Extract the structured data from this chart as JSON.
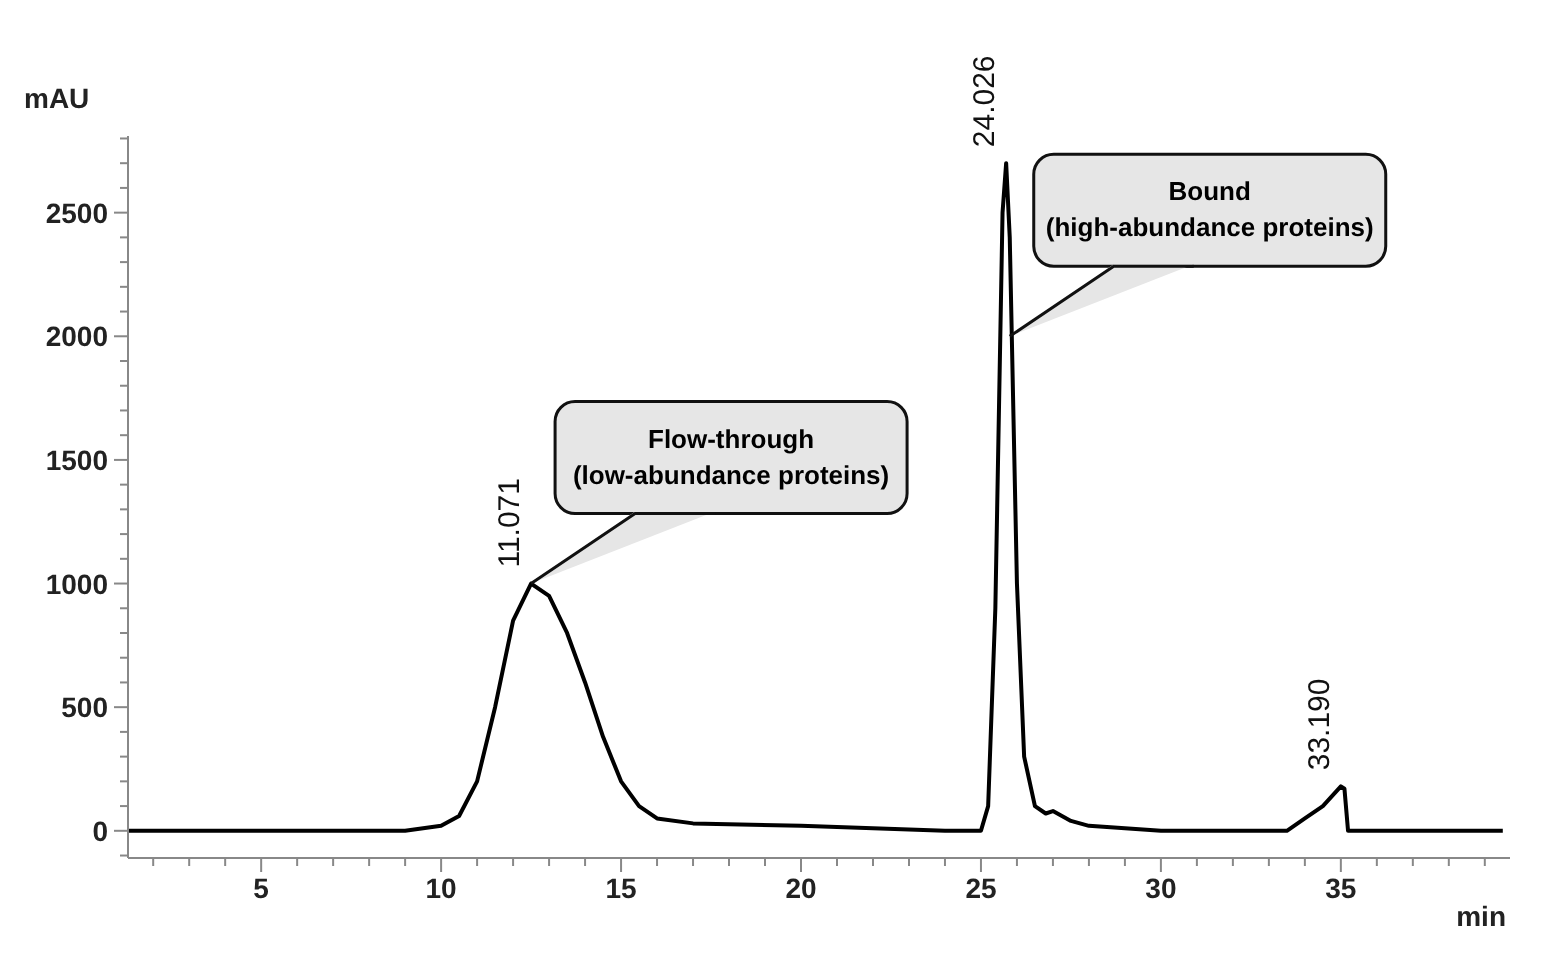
{
  "chart_data": {
    "type": "line",
    "xlabel": "min",
    "ylabel": "mAU",
    "x": [
      1.3,
      8,
      9,
      10,
      10.5,
      11,
      11.5,
      12,
      12.5,
      13,
      13.5,
      14,
      14.5,
      15,
      15.5,
      16,
      17,
      20,
      24,
      25,
      25.2,
      25.4,
      25.6,
      25.7,
      25.8,
      26,
      26.2,
      26.5,
      26.8,
      27,
      27.5,
      28,
      30,
      33,
      33.5,
      34,
      34.5,
      35,
      35.1,
      35.2,
      35.4,
      39.5
    ],
    "series": [
      {
        "color": "#000000",
        "values": [
          0,
          0,
          0,
          20,
          60,
          200,
          500,
          850,
          1000,
          950,
          800,
          600,
          380,
          200,
          100,
          50,
          30,
          20,
          0,
          0,
          100,
          900,
          2500,
          2700,
          2400,
          1000,
          300,
          100,
          70,
          80,
          40,
          20,
          0,
          0,
          0,
          50,
          100,
          180,
          170,
          0,
          0,
          0
        ]
      }
    ],
    "xlim": [
      1.3,
      39.7
    ],
    "xticks": [
      {
        "value": 2,
        "label": null
      },
      {
        "value": 3,
        "label": null
      },
      {
        "value": 4,
        "label": null
      },
      5,
      {
        "value": 6,
        "label": null
      },
      {
        "value": 7,
        "label": null
      },
      {
        "value": 8,
        "label": null
      },
      {
        "value": 9,
        "label": null
      },
      10,
      {
        "value": 11,
        "label": null
      },
      {
        "value": 12,
        "label": null
      },
      {
        "value": 13,
        "label": null
      },
      {
        "value": 14,
        "label": null
      },
      15,
      {
        "value": 16,
        "label": null
      },
      {
        "value": 17,
        "label": null
      },
      {
        "value": 18,
        "label": null
      },
      {
        "value": 19,
        "label": null
      },
      20,
      {
        "value": 21,
        "label": null
      },
      {
        "value": 22,
        "label": null
      },
      {
        "value": 23,
        "label": null
      },
      {
        "value": 24,
        "label": null
      },
      25,
      {
        "value": 26,
        "label": null
      },
      {
        "value": 27,
        "label": null
      },
      {
        "value": 28,
        "label": null
      },
      {
        "value": 29,
        "label": null
      },
      30,
      {
        "value": 31,
        "label": null
      },
      {
        "value": 32,
        "label": null
      },
      {
        "value": 33,
        "label": null
      },
      {
        "value": 34,
        "label": null
      },
      35,
      {
        "value": 36,
        "label": null
      },
      {
        "value": 37,
        "label": null
      },
      {
        "value": 38,
        "label": null
      },
      {
        "value": 39,
        "label": null
      }
    ],
    "ylim": [
      -110,
      2810
    ],
    "yticks": [
      {
        "value": -100,
        "label": null
      },
      0,
      {
        "value": 100,
        "label": null
      },
      {
        "value": 200,
        "label": null
      },
      {
        "value": 300,
        "label": null
      },
      {
        "value": 400,
        "label": null
      },
      500,
      {
        "value": 600,
        "label": null
      },
      {
        "value": 700,
        "label": null
      },
      {
        "value": 800,
        "label": null
      },
      {
        "value": 900,
        "label": null
      },
      1000,
      {
        "value": 1100,
        "label": null
      },
      {
        "value": 1200,
        "label": null
      },
      {
        "value": 1300,
        "label": null
      },
      {
        "value": 1400,
        "label": null
      },
      1500,
      {
        "value": 1600,
        "label": null
      },
      {
        "value": 1700,
        "label": null
      },
      {
        "value": 1800,
        "label": null
      },
      {
        "value": 1900,
        "label": null
      },
      2000,
      {
        "value": 2100,
        "label": null
      },
      {
        "value": 2200,
        "label": null
      },
      {
        "value": 2300,
        "label": null
      },
      {
        "value": 2400,
        "label": null
      },
      2500,
      {
        "value": 2600,
        "label": null
      },
      {
        "value": 2700,
        "label": null
      },
      {
        "value": 2800,
        "label": null
      }
    ],
    "grid": false,
    "legend": false,
    "marker": "none",
    "line_style": "solid",
    "annotations": [
      {
        "text": "11.071",
        "x": 12.5,
        "y": 1000
      },
      {
        "text": "24.026",
        "x": 25.7,
        "y": 2700
      },
      {
        "text": "33.190",
        "x": 35,
        "y": 180
      },
      {
        "text": "Flow-through (low-abundance proteins)",
        "x": 12.5,
        "y": 1000
      },
      {
        "text": "Bound (high-abundance proteins)",
        "x": 25.8,
        "y": 2000
      }
    ]
  }
}
